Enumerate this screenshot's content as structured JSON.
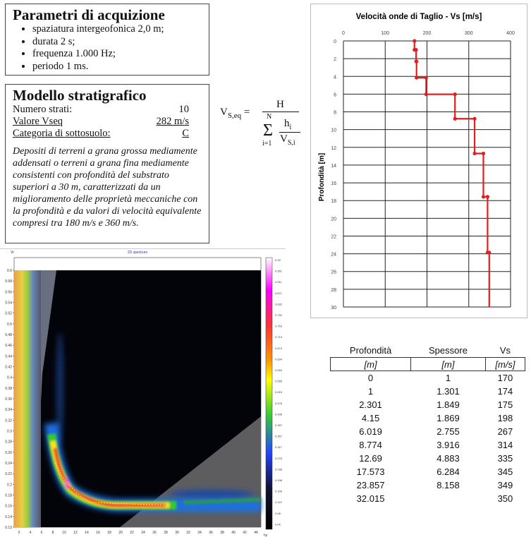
{
  "acquisition": {
    "title": "Parametri di acquizione",
    "items": [
      "spaziatura intergeofonica 2,0 m;",
      "durata 2 s;",
      "frequenza 1.000 Hz;",
      "periodo 1 ms."
    ]
  },
  "model": {
    "title": "Modello stratigrafico",
    "rows": [
      {
        "label": "Numero strati:",
        "value": "10"
      },
      {
        "label": "Valore Vseq",
        "value": "282 m/s"
      },
      {
        "label": "Categoria di sottosuolo:",
        "value": "C"
      }
    ],
    "description": "Depositi di terreni a grana grossa mediamente addensati o terreni a grana fina mediamente consistenti con profondità del substrato superiori a 30 m, caratterizzati da un miglioramento delle proprietà meccaniche con la profondità e da valori di velocità equivalente compresi tra 180 m/s e 360 m/s."
  },
  "formula": {
    "lhs": "V",
    "lhs_sub": "S,eq",
    "eq": "=",
    "num": "H",
    "sum_top": "N",
    "sum_bottom": "i=1",
    "frac_num": "h",
    "frac_num_sub": "i",
    "frac_den": "V",
    "frac_den_sub": "S,i"
  },
  "chart_data": {
    "type": "line",
    "title": "Velocità onde di Taglio - Vs [m/s]",
    "xlabel": "",
    "ylabel": "Profondità [m]",
    "xlim": [
      0,
      400
    ],
    "ylim": [
      0,
      30
    ],
    "xticks": [
      "0",
      "100",
      "200",
      "300",
      "400"
    ],
    "yticks": [
      "0",
      "2",
      "4",
      "6",
      "8",
      "10",
      "12",
      "14",
      "16",
      "18",
      "20",
      "22",
      "24",
      "26",
      "28",
      "30"
    ],
    "depth": [
      0,
      1,
      2.301,
      4.15,
      6.019,
      8.774,
      12.69,
      17.573,
      23.857,
      32.015
    ],
    "vs": [
      170,
      174,
      175,
      198,
      267,
      314,
      335,
      345,
      349,
      350
    ],
    "color": "#e02020"
  },
  "spectrum": {
    "title": "2D spectrum",
    "ylabel": "Vr",
    "xlabel": "hz",
    "yticks": [
      "0.6",
      "0.58",
      "0.56",
      "0.54",
      "0.52",
      "0.5",
      "0.48",
      "0.46",
      "0.44",
      "0.42",
      "0.4",
      "0.38",
      "0.36",
      "0.34",
      "0.32",
      "0.3",
      "0.28",
      "0.26",
      "0.24",
      "0.22",
      "0.2",
      "0.18",
      "0.16",
      "0.14",
      "0.12"
    ],
    "xticks": [
      "2",
      "4",
      "6",
      "8",
      "10",
      "12",
      "14",
      "16",
      "18",
      "20",
      "22",
      "24",
      "26",
      "28",
      "30",
      "32",
      "34",
      "36",
      "38",
      "40",
      "42",
      "44"
    ],
    "colorbar": [
      "0.99",
      "0.951",
      "0.911",
      "0.871",
      "0.832",
      "0.792",
      "0.753",
      "0.713",
      "0.674",
      "0.634",
      "0.594",
      "0.555",
      "0.515",
      "0.476",
      "0.436",
      "0.397",
      "0.357",
      "0.317",
      "0.278",
      "0.238",
      "0.198",
      "0.159",
      "0.119",
      "0.08",
      "0.04"
    ]
  },
  "table": {
    "headers": [
      "Profondità",
      "Spessore",
      "Vs"
    ],
    "units": [
      "[m]",
      "[m]",
      "[m/s]"
    ],
    "rows": [
      [
        "0",
        "1",
        "170"
      ],
      [
        "1",
        "1.301",
        "174"
      ],
      [
        "2.301",
        "1.849",
        "175"
      ],
      [
        "4.15",
        "1.869",
        "198"
      ],
      [
        "6.019",
        "2.755",
        "267"
      ],
      [
        "8.774",
        "3.916",
        "314"
      ],
      [
        "12.69",
        "4.883",
        "335"
      ],
      [
        "17.573",
        "6.284",
        "345"
      ],
      [
        "23.857",
        "8.158",
        "349"
      ],
      [
        "32.015",
        "",
        "350"
      ]
    ]
  }
}
